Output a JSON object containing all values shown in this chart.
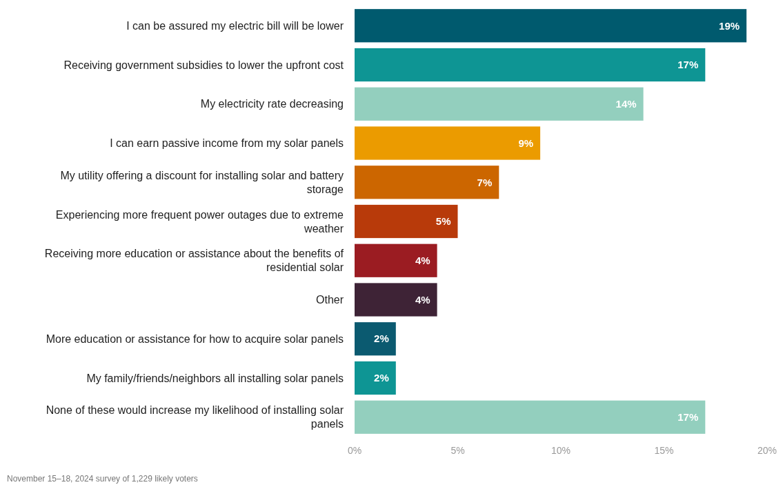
{
  "chart_data": {
    "type": "bar",
    "orientation": "horizontal",
    "categories": [
      "I can be assured my electric bill will be lower",
      "Receiving government subsidies to lower the upfront cost",
      "My electricity rate decreasing",
      "I can earn passive income from my solar panels",
      "My utility offering a discount for installing solar and battery storage",
      "Experiencing more frequent power outages due to extreme weather",
      "Receiving more education or assistance about the benefits of residential solar",
      "Other",
      "More education or assistance for how to acquire solar panels",
      "My family/friends/neighbors all installing solar panels",
      "None of these would increase my likelihood of installing solar panels"
    ],
    "values": [
      19,
      17,
      14,
      9,
      7,
      5,
      4,
      4,
      2,
      2,
      17
    ],
    "value_labels": [
      "19%",
      "17%",
      "14%",
      "9%",
      "7%",
      "5%",
      "4%",
      "4%",
      "2%",
      "2%",
      "17%"
    ],
    "colors": [
      "#005a6e",
      "#0e9594",
      "#93cfbe",
      "#eb9b00",
      "#cc6600",
      "#b83a0a",
      "#9b1c22",
      "#3e2336",
      "#0b5a70",
      "#0e9594",
      "#93cfbe"
    ],
    "xlim": [
      0,
      20
    ],
    "xticks": [
      {
        "value": 0,
        "label": "0%"
      },
      {
        "value": 5,
        "label": "5%"
      },
      {
        "value": 10,
        "label": "10%"
      },
      {
        "value": 15,
        "label": "15%"
      },
      {
        "value": 20,
        "label": "20%"
      }
    ],
    "grid": false,
    "annotations": [
      "November 15–18, 2024 survey of 1,229 likely voters"
    ]
  }
}
